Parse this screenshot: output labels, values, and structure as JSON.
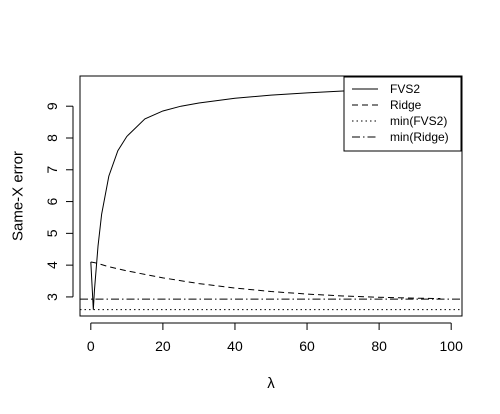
{
  "chart_data": {
    "type": "line",
    "xlabel": "λ",
    "ylabel": "Same-X error",
    "xlim": [
      -3,
      103
    ],
    "ylim": [
      2.4,
      9.95
    ],
    "x_ticks": [
      0,
      20,
      40,
      60,
      80,
      100
    ],
    "y_ticks": [
      3,
      4,
      5,
      6,
      7,
      8,
      9
    ],
    "legend_position": "top-right",
    "grid": false,
    "series": [
      {
        "name": "FVS2",
        "line_style": "solid",
        "x": [
          0,
          0.7,
          1,
          2,
          3,
          5,
          7.5,
          10,
          15,
          20,
          25,
          30,
          40,
          50,
          60,
          70,
          80,
          90,
          97
        ],
        "y": [
          4.1,
          2.6,
          3.2,
          4.6,
          5.6,
          6.8,
          7.6,
          8.05,
          8.6,
          8.85,
          9.0,
          9.1,
          9.25,
          9.35,
          9.42,
          9.48,
          9.52,
          9.55,
          9.57
        ]
      },
      {
        "name": "Ridge",
        "line_style": "dashed",
        "x": [
          0,
          1,
          2,
          5,
          10,
          20,
          30,
          40,
          50,
          60,
          70,
          80,
          90,
          97
        ],
        "y": [
          4.1,
          4.08,
          4.05,
          3.95,
          3.82,
          3.6,
          3.42,
          3.28,
          3.17,
          3.09,
          3.03,
          2.99,
          2.96,
          2.95
        ]
      },
      {
        "name": "min(FVS2)",
        "line_style": "dotted",
        "x": [
          -3,
          103
        ],
        "y": [
          2.6,
          2.6
        ]
      },
      {
        "name": "min(Ridge)",
        "line_style": "dashdot",
        "x": [
          -3,
          103
        ],
        "y": [
          2.93,
          2.93
        ]
      }
    ]
  }
}
